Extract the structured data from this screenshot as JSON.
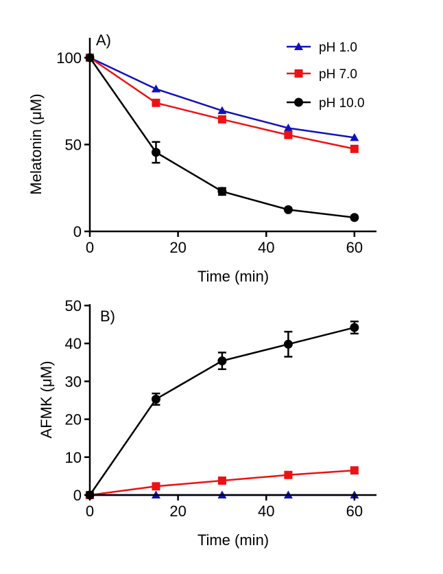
{
  "chart_data": [
    {
      "type": "line",
      "panel_label": "A)",
      "xlabel": "Time (min)",
      "ylabel": "Melatonin (μM)",
      "xlim": [
        0,
        65
      ],
      "ylim": [
        0,
        100
      ],
      "xticks": [
        0,
        20,
        40,
        60
      ],
      "yticks": [
        0,
        50,
        100
      ],
      "legend": {
        "position": "top-right"
      },
      "series": [
        {
          "name": "pH 1.0",
          "color": "#1111bb",
          "marker": "triangle",
          "x": [
            0,
            15,
            30,
            45,
            60
          ],
          "y": [
            100,
            82,
            69.5,
            59.5,
            54
          ],
          "err": [
            0,
            0,
            0,
            0,
            0
          ]
        },
        {
          "name": "pH 7.0",
          "color": "#ee1111",
          "marker": "square",
          "x": [
            0,
            15,
            30,
            45,
            60
          ],
          "y": [
            100,
            74,
            64.5,
            55.5,
            47.5
          ],
          "err": [
            0,
            0,
            0,
            0,
            0
          ]
        },
        {
          "name": "pH 10.0",
          "color": "#000000",
          "marker": "circle",
          "x": [
            0,
            15,
            30,
            45,
            60
          ],
          "y": [
            100,
            45.5,
            23,
            12.5,
            8
          ],
          "err": [
            0,
            6,
            2,
            0,
            0
          ]
        }
      ]
    },
    {
      "type": "line",
      "panel_label": "B)",
      "xlabel": "Time (min)",
      "ylabel": "AFMK (μM)",
      "xlim": [
        0,
        65
      ],
      "ylim": [
        0,
        50
      ],
      "xticks": [
        0,
        20,
        40,
        60
      ],
      "yticks": [
        0,
        10,
        20,
        30,
        40,
        50
      ],
      "series": [
        {
          "name": "pH 1.0",
          "color": "#1111bb",
          "marker": "triangle",
          "x": [
            0,
            15,
            30,
            45,
            60
          ],
          "y": [
            0,
            0,
            0,
            0,
            0
          ],
          "err": [
            0,
            0,
            0,
            0,
            0
          ]
        },
        {
          "name": "pH 7.0",
          "color": "#ee1111",
          "marker": "square",
          "x": [
            0,
            15,
            30,
            45,
            60
          ],
          "y": [
            0,
            2.3,
            3.8,
            5.3,
            6.5
          ],
          "err": [
            0,
            0,
            0,
            0,
            0
          ]
        },
        {
          "name": "pH 10.0",
          "color": "#000000",
          "marker": "circle",
          "x": [
            0,
            15,
            30,
            45,
            60
          ],
          "y": [
            0,
            25.3,
            35.4,
            39.8,
            44.2
          ],
          "err": [
            0,
            1.5,
            2.2,
            3.3,
            1.6
          ]
        }
      ]
    }
  ]
}
